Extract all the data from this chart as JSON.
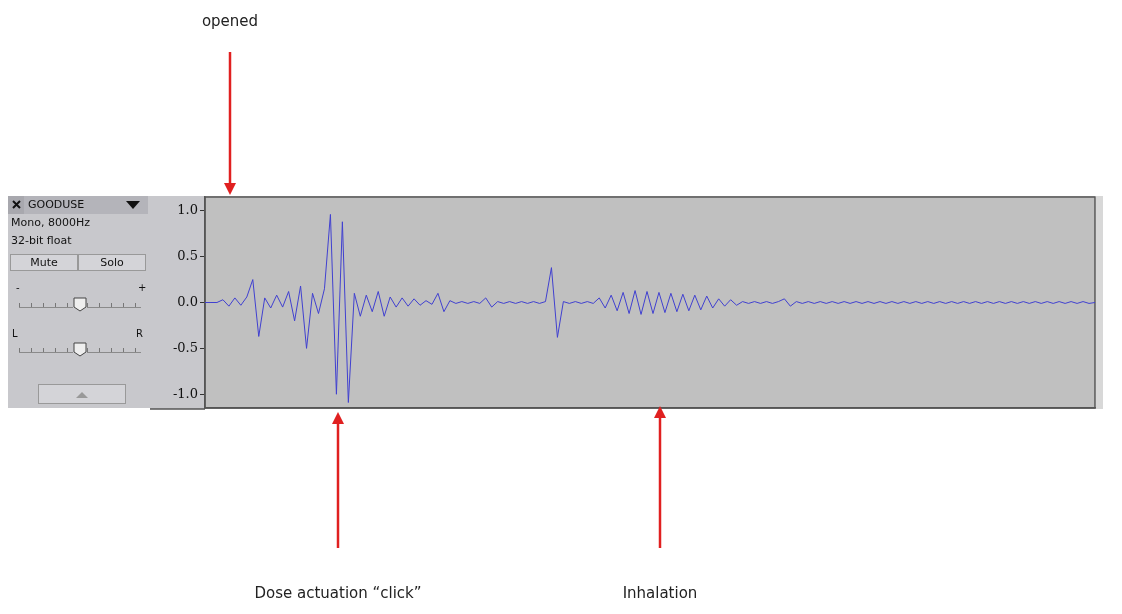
{
  "chart_data": {
    "type": "line",
    "categories": [
      null,
      null,
      null,
      null,
      null,
      null,
      null,
      null,
      null,
      null,
      null,
      null,
      null,
      null,
      null,
      null,
      null,
      null,
      null,
      null,
      null,
      null,
      null,
      null,
      null,
      null,
      null,
      null,
      null,
      null,
      null,
      null,
      null,
      null,
      null,
      null,
      null,
      null,
      null,
      null,
      null,
      null,
      null,
      null,
      null,
      null,
      null,
      null,
      null,
      null,
      null,
      null,
      null,
      null,
      null,
      null,
      null,
      null,
      null,
      null,
      null,
      null,
      null,
      null,
      null,
      null,
      null,
      null,
      null,
      null,
      null,
      null,
      null,
      null,
      null,
      null,
      null,
      null,
      null,
      null,
      null,
      null,
      null,
      null,
      null,
      null,
      null,
      null,
      null,
      null,
      null,
      null,
      null,
      null,
      null,
      null,
      null,
      null,
      null,
      null,
      null,
      null,
      null,
      null,
      null,
      null,
      null,
      null,
      null,
      null,
      null,
      null,
      null,
      null,
      null,
      null,
      null,
      null,
      null,
      null,
      null,
      null,
      null,
      null,
      null,
      null,
      null,
      null,
      null,
      null,
      null,
      null,
      null,
      null,
      null,
      null,
      null,
      null,
      null,
      null,
      null,
      null,
      null,
      null,
      null,
      null,
      null,
      null,
      null,
      null
    ],
    "series": [
      {
        "color": "#4040d0",
        "values": [
          0,
          0,
          0,
          0.03,
          -0.04,
          0.05,
          -0.03,
          0.06,
          0.25,
          -0.37,
          0.05,
          -0.06,
          0.08,
          -0.05,
          0.12,
          -0.2,
          0.18,
          -0.5,
          0.1,
          -0.12,
          0.15,
          0.96,
          -1.0,
          0.88,
          -1.09,
          0.1,
          -0.15,
          0.08,
          -0.1,
          0.12,
          -0.15,
          0.06,
          -0.05,
          0.05,
          -0.04,
          0.04,
          -0.03,
          0.02,
          -0.02,
          0.1,
          -0.1,
          0.02,
          -0.01,
          0.01,
          -0.01,
          0.01,
          -0.01,
          0.05,
          -0.05,
          0.01,
          -0.01,
          0.01,
          -0.01,
          0.01,
          -0.01,
          0.01,
          -0.01,
          0.01,
          0.38,
          -0.38,
          0.01,
          -0.01,
          0.01,
          -0.01,
          0.01,
          -0.01,
          0.05,
          -0.06,
          0.08,
          -0.09,
          0.11,
          -0.12,
          0.13,
          -0.13,
          0.12,
          -0.12,
          0.11,
          -0.11,
          0.1,
          -0.1,
          0.09,
          -0.09,
          0.08,
          -0.08,
          0.07,
          -0.06,
          0.04,
          -0.04,
          0.03,
          -0.03,
          0.01,
          -0.01,
          0.01,
          -0.01,
          0.01,
          -0.01,
          0.01,
          0.04,
          -0.04,
          0.01,
          -0.01,
          0.01,
          -0.01,
          0.01,
          -0.01,
          0.01,
          -0.01,
          0.01,
          -0.01,
          0.01,
          -0.01,
          0.01,
          -0.01,
          0.01,
          -0.01,
          0.01,
          -0.01,
          0.01,
          -0.01,
          0.01,
          -0.01,
          0.01,
          -0.01,
          0.01,
          -0.01,
          0.01,
          -0.01,
          0.01,
          -0.01,
          0.01,
          -0.01,
          0.01,
          -0.01,
          0.01,
          -0.01,
          0.01,
          -0.01,
          0.01,
          -0.01,
          0.01,
          -0.01,
          0.01,
          -0.01,
          0.01,
          -0.01,
          0.01,
          -0.01,
          0.01,
          -0.01,
          0
        ]
      }
    ],
    "ylim": [
      -1.15,
      1.15
    ],
    "yticks": [
      {
        "value": 1,
        "label": "1.0"
      },
      {
        "value": 0.5,
        "label": "0.5"
      },
      {
        "value": 0,
        "label": "0.0"
      },
      {
        "value": -0.5,
        "label": "-0.5"
      },
      {
        "value": -1,
        "label": "-1.0"
      }
    ],
    "grid": false,
    "legend": false,
    "marker": "none",
    "tick_labels": "y",
    "annotations": [
      "opened",
      "Dose actuation “click”",
      "Inhalation",
      "GOODUSE",
      "Mono, 8000Hz",
      "32-bit float",
      "Mute",
      "Solo",
      "-",
      "+",
      "L",
      "R"
    ]
  }
}
